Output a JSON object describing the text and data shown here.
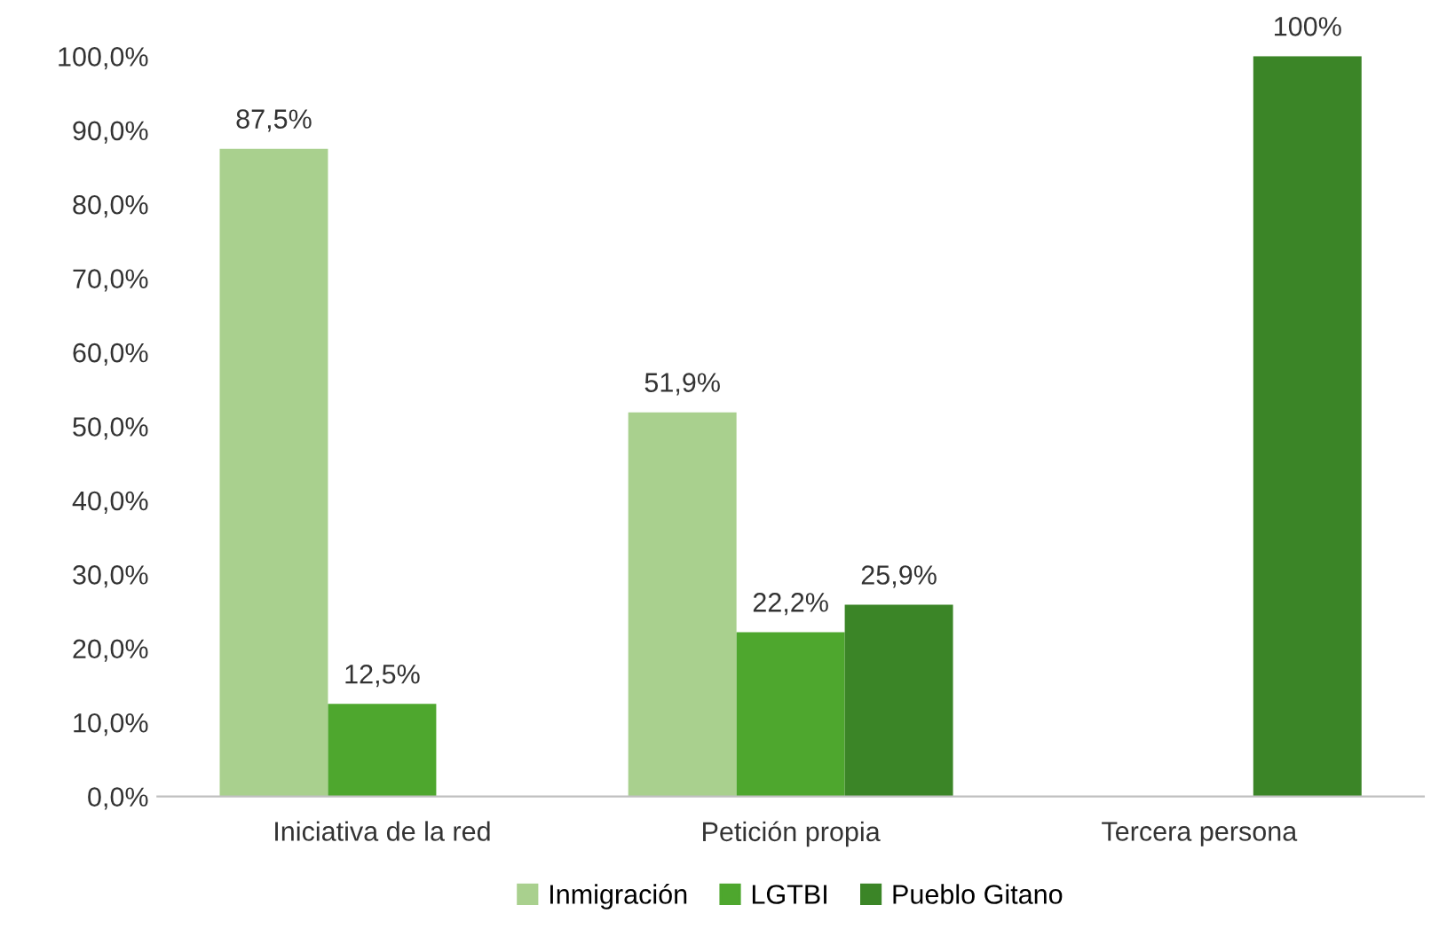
{
  "chart_data": {
    "type": "bar",
    "categories": [
      "Iniciativa de la red",
      "Petición propia",
      "Tercera persona"
    ],
    "series": [
      {
        "name": "Inmigración",
        "color": "#a9d08e",
        "values": [
          87.5,
          51.9,
          null
        ],
        "value_labels": [
          "87,5%",
          "51,9%",
          null
        ]
      },
      {
        "name": "LGTBI",
        "color": "#4ea72e",
        "values": [
          12.5,
          22.2,
          null
        ],
        "value_labels": [
          "12,5%",
          "22,2%",
          null
        ]
      },
      {
        "name": "Pueblo Gitano",
        "color": "#3b8527",
        "values": [
          null,
          25.9,
          100
        ],
        "value_labels": [
          null,
          "25,9%",
          "100%"
        ]
      }
    ],
    "ylim": [
      0,
      100
    ],
    "yticks": [
      {
        "value": 0,
        "label": "0,0%"
      },
      {
        "value": 10,
        "label": "10,0%"
      },
      {
        "value": 20,
        "label": "20,0%"
      },
      {
        "value": 30,
        "label": "30,0%"
      },
      {
        "value": 40,
        "label": "40,0%"
      },
      {
        "value": 50,
        "label": "50,0%"
      },
      {
        "value": 60,
        "label": "60,0%"
      },
      {
        "value": 70,
        "label": "70,0%"
      },
      {
        "value": 80,
        "label": "80,0%"
      },
      {
        "value": 90,
        "label": "90,0%"
      },
      {
        "value": 100,
        "label": "100,0%"
      }
    ],
    "grid": false,
    "legend": "bottom"
  }
}
